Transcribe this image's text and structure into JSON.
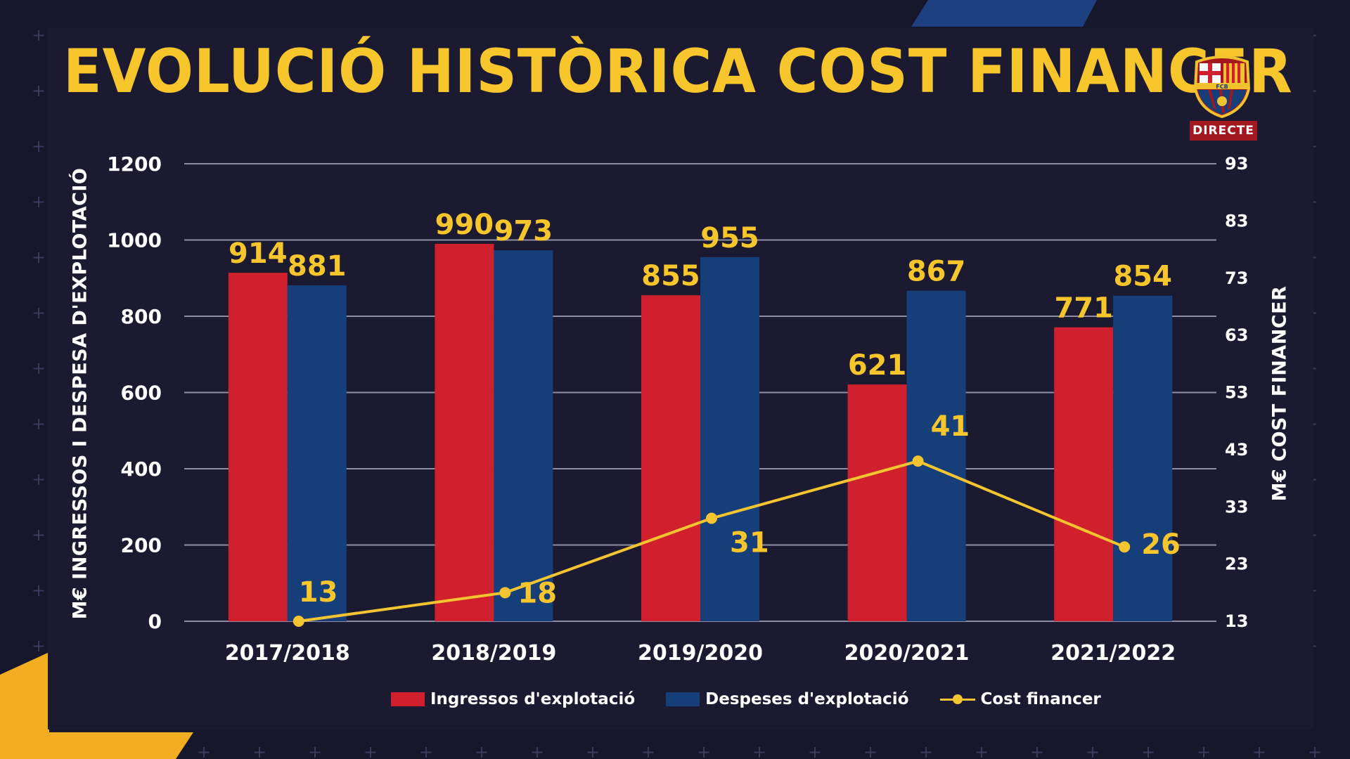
{
  "title": "EVOLUCIÓ HISTÒRICA COST FINANCER",
  "badge": "DIRECTE",
  "crest": {
    "icon": "fc-barcelona-crest-icon",
    "text": "FCB"
  },
  "colors": {
    "background": "#17172b",
    "title": "#f7c52c",
    "ingressos": "#d0202e",
    "despeses": "#163f7a",
    "cost": "#f4c431",
    "grid": "#8e8ea4",
    "label": "#f7c52c",
    "tick": "#ffffff"
  },
  "chart_data": {
    "type": "bar",
    "categories": [
      "2017/2018",
      "2018/2019",
      "2019/2020",
      "2020/2021",
      "2021/2022"
    ],
    "series": [
      {
        "name": "Ingressos d'explotació",
        "values": [
          914,
          990,
          855,
          621,
          771
        ]
      },
      {
        "name": "Despeses d'explotació",
        "values": [
          881,
          973,
          955,
          867,
          854
        ]
      },
      {
        "name": "Cost financer",
        "type": "line",
        "axis": "right",
        "values": [
          13,
          18,
          31,
          41,
          26
        ]
      }
    ],
    "ylabel": "M€ INGRESSOS I DESPESA D'EXPLOTACIÓ",
    "ylabel_right": "M€ COST FINANCER",
    "ylim": [
      0,
      1200
    ],
    "yticks": [
      0,
      200,
      400,
      600,
      800,
      1000,
      1200
    ],
    "ylim_right": [
      13,
      93
    ],
    "yticks_right": [
      13,
      23,
      33,
      43,
      53,
      63,
      73,
      83,
      93
    ],
    "grid": true,
    "legend_position": "bottom"
  }
}
